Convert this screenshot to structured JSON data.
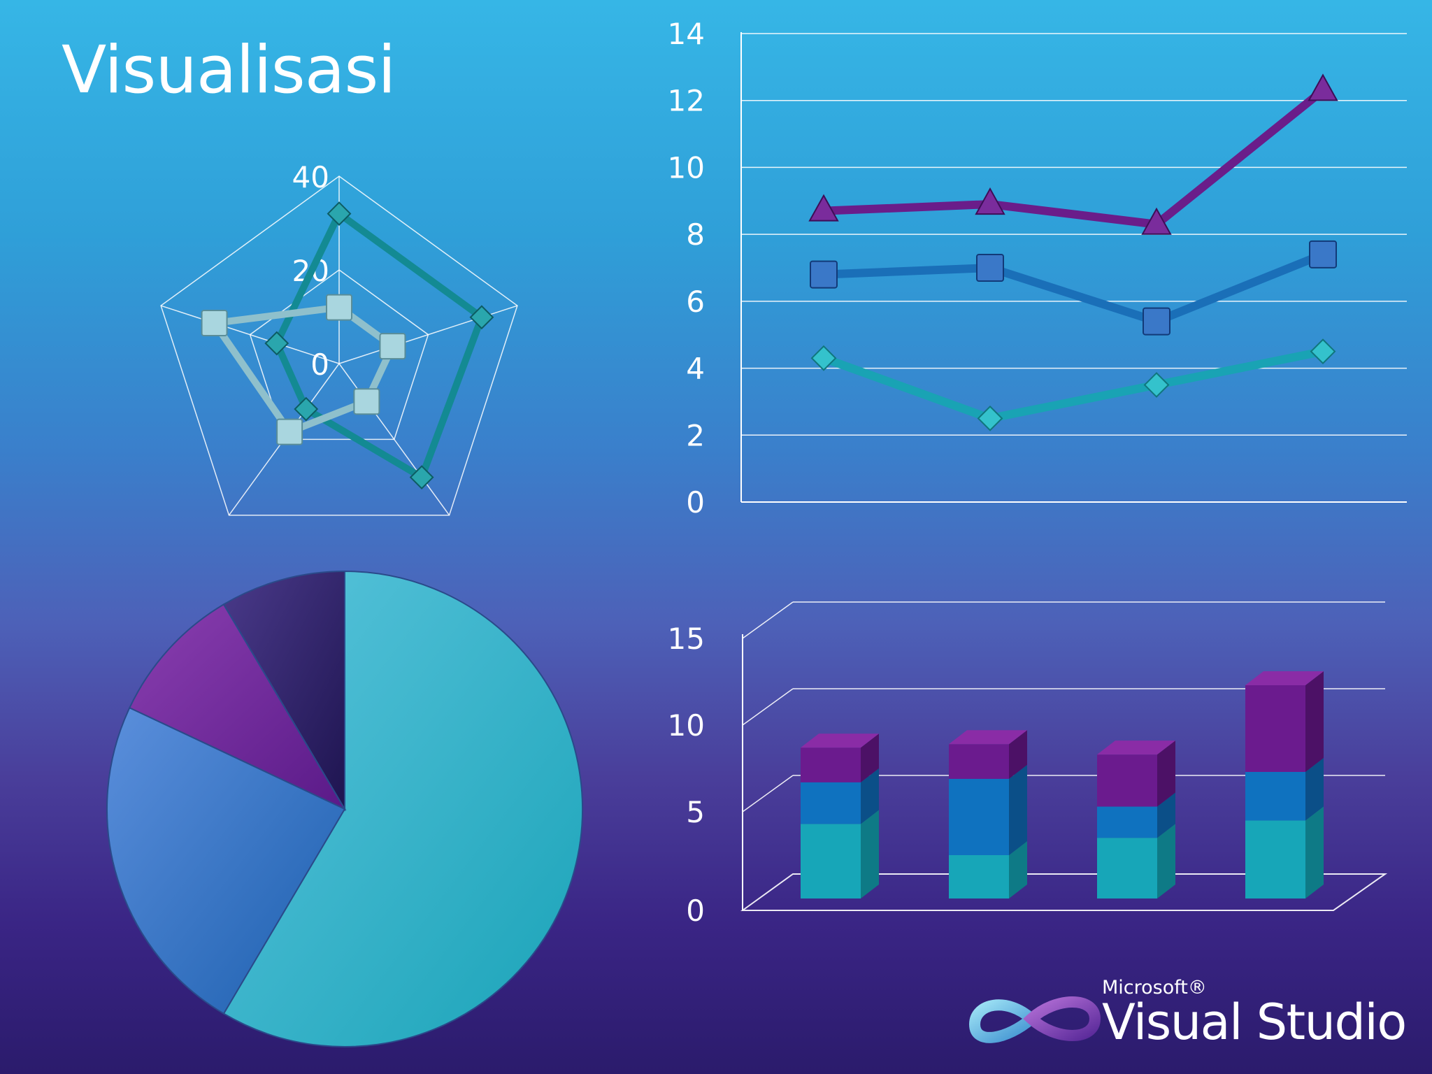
{
  "slide": {
    "title": "Visualisasi"
  },
  "logo": {
    "brand": "Microsoft®",
    "product": "Visual Studio"
  },
  "colors": {
    "teal": "#19a3b4",
    "blue": "#1a6fb8",
    "purple": "#6a1d8a",
    "lightteal": "#8fc0cc",
    "darkteal": "#138a93"
  },
  "chart_data": [
    {
      "type": "radar",
      "title": "",
      "axes": [
        "",
        "",
        "",
        "",
        ""
      ],
      "rlim": [
        0,
        40
      ],
      "ticks": [
        0,
        20,
        40
      ],
      "tick_labels": [
        "0",
        "20",
        "40"
      ],
      "series": [
        {
          "values": [
            32,
            32,
            30,
            12,
            14
          ]
        },
        {
          "values": [
            12,
            12,
            10,
            18,
            28
          ]
        }
      ]
    },
    {
      "type": "line",
      "title": "",
      "categories": [
        "",
        "",
        "",
        ""
      ],
      "ylim": [
        0,
        14
      ],
      "yticks": [
        0,
        2,
        4,
        6,
        8,
        10,
        12,
        14
      ],
      "ytick_labels": [
        "0",
        "2",
        "4",
        "6",
        "8",
        "10",
        "12",
        "14"
      ],
      "grid": true,
      "series": [
        {
          "values": [
            4.3,
            2.5,
            3.5,
            4.5
          ],
          "marker": "diamond"
        },
        {
          "values": [
            6.8,
            7.0,
            5.4,
            7.4
          ],
          "marker": "square"
        },
        {
          "values": [
            8.7,
            8.9,
            8.3,
            12.3
          ],
          "marker": "triangle"
        }
      ]
    },
    {
      "type": "pie",
      "title": "",
      "values": [
        58.5,
        23.5,
        9.5,
        8.5
      ],
      "labels": [
        "",
        "",
        "",
        ""
      ]
    },
    {
      "type": "bar",
      "stacked": true,
      "title": "",
      "categories": [
        "",
        "",
        "",
        ""
      ],
      "ylim": [
        0,
        15
      ],
      "yticks": [
        0,
        5,
        10,
        15
      ],
      "ytick_labels": [
        "0",
        "5",
        "10",
        "15"
      ],
      "grid": true,
      "series": [
        {
          "values": [
            4.3,
            2.5,
            3.5,
            4.5
          ]
        },
        {
          "values": [
            2.4,
            4.4,
            1.8,
            2.8
          ]
        },
        {
          "values": [
            2.0,
            2.0,
            3.0,
            5.0
          ]
        }
      ]
    }
  ]
}
